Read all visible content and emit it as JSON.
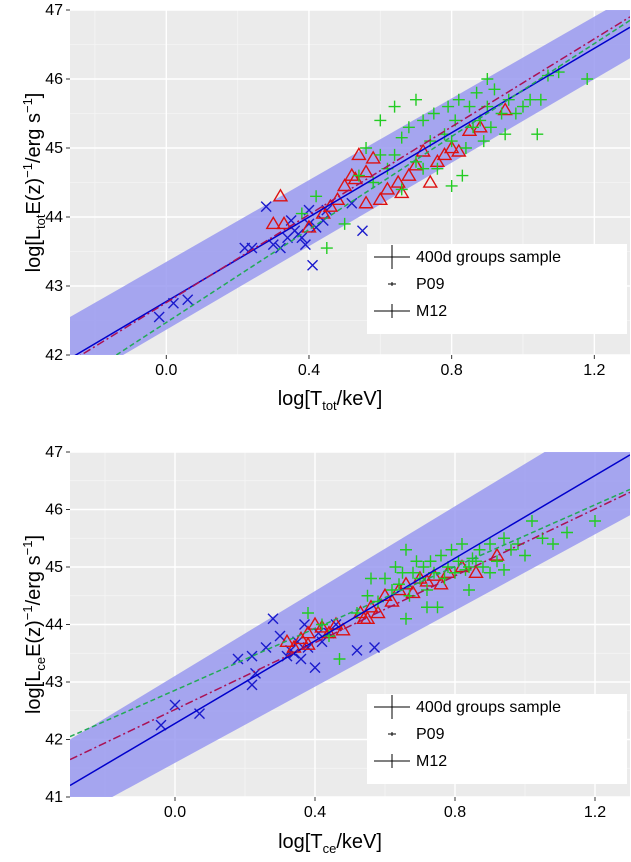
{
  "chart_data": [
    {
      "type": "scatter",
      "xlabel": {
        "main": "log[T",
        "sub": "tot",
        "tail": "/keV]"
      },
      "ylabel": {
        "p1": "log[L",
        "sub": "tot",
        "p2": "E(z)",
        "sup1": "−1",
        "p3": "/erg s",
        "sup2": "−1",
        "p4": "]"
      },
      "xlim": [
        -0.27,
        1.3
      ],
      "ylim": [
        42,
        47
      ],
      "xticks": [
        0.0,
        0.4,
        0.8,
        1.2
      ],
      "xtick_labels": [
        "0.0",
        "0.4",
        "0.8",
        "1.2"
      ],
      "yticks": [
        42,
        43,
        44,
        45,
        46,
        47
      ],
      "ytick_labels": [
        "42",
        "43",
        "44",
        "45",
        "46",
        "47"
      ],
      "grid": true,
      "legend_position": "bottom-right",
      "legend": [
        "400d groups sample",
        "P09",
        "M12"
      ],
      "band": {
        "x": [
          -0.27,
          1.3
        ],
        "lower": [
          41.55,
          46.3
        ],
        "upper": [
          42.55,
          47.2
        ],
        "color": "#9999f0"
      },
      "lines": [
        {
          "name": "400d groups sample",
          "style": "solid",
          "color": "#0000cc",
          "x": [
            -0.27,
            1.3
          ],
          "y": [
            41.95,
            46.75
          ]
        },
        {
          "name": "P09",
          "style": "dashdot",
          "color": "#aa1155",
          "x": [
            -0.27,
            1.3
          ],
          "y": [
            41.9,
            46.9
          ]
        },
        {
          "name": "M12",
          "style": "dashed",
          "color": "#22aa55",
          "x": [
            -0.14,
            1.3
          ],
          "y": [
            42.0,
            46.85
          ]
        }
      ],
      "series": [
        {
          "marker": "x",
          "color": "#1a1acc",
          "points": [
            [
              -0.02,
              42.55
            ],
            [
              0.02,
              42.75
            ],
            [
              0.06,
              42.8
            ],
            [
              0.22,
              43.55
            ],
            [
              0.24,
              43.55
            ],
            [
              0.28,
              44.15
            ],
            [
              0.3,
              43.6
            ],
            [
              0.32,
              43.55
            ],
            [
              0.34,
              43.7
            ],
            [
              0.35,
              43.95
            ],
            [
              0.37,
              43.75
            ],
            [
              0.38,
              43.7
            ],
            [
              0.39,
              43.6
            ],
            [
              0.4,
              44.1
            ],
            [
              0.41,
              43.3
            ],
            [
              0.42,
              43.85
            ],
            [
              0.44,
              43.95
            ],
            [
              0.45,
              44.1
            ],
            [
              0.52,
              44.2
            ],
            [
              0.55,
              43.8
            ],
            [
              0.4,
              43.9
            ],
            [
              0.36,
              43.8
            ]
          ]
        },
        {
          "marker": "triangle",
          "color": "#dd1111",
          "points": [
            [
              0.3,
              43.9
            ],
            [
              0.32,
              44.3
            ],
            [
              0.33,
              43.9
            ],
            [
              0.4,
              43.85
            ],
            [
              0.44,
              44.05
            ],
            [
              0.46,
              44.15
            ],
            [
              0.48,
              44.25
            ],
            [
              0.5,
              44.45
            ],
            [
              0.52,
              44.6
            ],
            [
              0.53,
              44.55
            ],
            [
              0.54,
              44.9
            ],
            [
              0.56,
              44.2
            ],
            [
              0.58,
              44.85
            ],
            [
              0.6,
              44.25
            ],
            [
              0.62,
              44.4
            ],
            [
              0.65,
              44.5
            ],
            [
              0.66,
              44.35
            ],
            [
              0.68,
              44.6
            ],
            [
              0.7,
              44.75
            ],
            [
              0.72,
              44.95
            ],
            [
              0.74,
              44.5
            ],
            [
              0.76,
              44.8
            ],
            [
              0.78,
              44.9
            ],
            [
              0.8,
              45.0
            ],
            [
              0.82,
              44.95
            ],
            [
              0.85,
              45.25
            ],
            [
              0.88,
              45.3
            ],
            [
              0.95,
              45.55
            ],
            [
              0.56,
              44.65
            ]
          ]
        },
        {
          "marker": "plus",
          "color": "#22cc22",
          "points": [
            [
              0.38,
              44.05
            ],
            [
              0.42,
              44.3
            ],
            [
              0.45,
              43.55
            ],
            [
              0.5,
              43.9
            ],
            [
              0.54,
              44.6
            ],
            [
              0.56,
              45.0
            ],
            [
              0.58,
              44.5
            ],
            [
              0.6,
              44.9
            ],
            [
              0.62,
              44.7
            ],
            [
              0.64,
              44.9
            ],
            [
              0.66,
              45.15
            ],
            [
              0.68,
              45.3
            ],
            [
              0.7,
              44.8
            ],
            [
              0.72,
              45.4
            ],
            [
              0.72,
              44.7
            ],
            [
              0.74,
              45.1
            ],
            [
              0.75,
              45.5
            ],
            [
              0.76,
              44.7
            ],
            [
              0.78,
              45.2
            ],
            [
              0.79,
              45.6
            ],
            [
              0.8,
              45.1
            ],
            [
              0.81,
              45.4
            ],
            [
              0.82,
              45.7
            ],
            [
              0.83,
              44.6
            ],
            [
              0.84,
              45.0
            ],
            [
              0.85,
              45.6
            ],
            [
              0.86,
              45.3
            ],
            [
              0.87,
              45.8
            ],
            [
              0.88,
              45.4
            ],
            [
              0.89,
              45.1
            ],
            [
              0.9,
              45.6
            ],
            [
              0.91,
              45.3
            ],
            [
              0.92,
              45.85
            ],
            [
              0.94,
              45.5
            ],
            [
              0.95,
              45.2
            ],
            [
              0.96,
              45.7
            ],
            [
              0.98,
              45.5
            ],
            [
              1.0,
              45.6
            ],
            [
              1.02,
              45.7
            ],
            [
              1.04,
              45.2
            ],
            [
              1.05,
              45.7
            ],
            [
              1.07,
              46.05
            ],
            [
              1.1,
              46.1
            ],
            [
              1.18,
              46.0
            ],
            [
              0.8,
              44.45
            ],
            [
              0.7,
              45.7
            ],
            [
              0.66,
              44.4
            ],
            [
              0.64,
              45.6
            ],
            [
              0.6,
              45.4
            ],
            [
              0.9,
              46.0
            ]
          ]
        }
      ]
    },
    {
      "type": "scatter",
      "xlabel": {
        "main": "log[T",
        "sub": "ce",
        "tail": "/keV]"
      },
      "ylabel": {
        "p1": "log[L",
        "sub": "ce",
        "p2": "E(z)",
        "sup1": "−1",
        "p3": "/erg s",
        "sup2": "−1",
        "p4": "]"
      },
      "xlim": [
        -0.3,
        1.3
      ],
      "ylim": [
        41,
        47
      ],
      "xticks": [
        0.0,
        0.4,
        0.8,
        1.2
      ],
      "xtick_labels": [
        "0.0",
        "0.4",
        "0.8",
        "1.2"
      ],
      "yticks": [
        41,
        42,
        43,
        44,
        45,
        46,
        47
      ],
      "ytick_labels": [
        "41",
        "42",
        "43",
        "44",
        "45",
        "46",
        "47"
      ],
      "grid": true,
      "legend_position": "bottom-right",
      "legend": [
        "400d groups sample",
        "P09",
        "M12"
      ],
      "band": {
        "x": [
          -0.3,
          1.3
        ],
        "lower": [
          40.6,
          45.9
        ],
        "upper": [
          42.0,
          47.9
        ],
        "color": "#9999f0"
      },
      "lines": [
        {
          "name": "400d groups sample",
          "style": "solid",
          "color": "#0000cc",
          "x": [
            -0.3,
            1.3
          ],
          "y": [
            41.2,
            46.95
          ]
        },
        {
          "name": "P09",
          "style": "dashdot",
          "color": "#aa1155",
          "x": [
            -0.3,
            1.3
          ],
          "y": [
            41.65,
            46.3
          ]
        },
        {
          "name": "M12",
          "style": "dashed",
          "color": "#22aa55",
          "x": [
            -0.3,
            1.3
          ],
          "y": [
            42.05,
            46.35
          ]
        }
      ],
      "series": [
        {
          "marker": "x",
          "color": "#1a1acc",
          "points": [
            [
              -0.04,
              42.25
            ],
            [
              0.0,
              42.6
            ],
            [
              0.07,
              42.45
            ],
            [
              0.18,
              43.4
            ],
            [
              0.22,
              42.95
            ],
            [
              0.22,
              43.45
            ],
            [
              0.23,
              43.15
            ],
            [
              0.26,
              43.6
            ],
            [
              0.28,
              44.1
            ],
            [
              0.3,
              43.8
            ],
            [
              0.32,
              43.45
            ],
            [
              0.33,
              43.55
            ],
            [
              0.34,
              43.5
            ],
            [
              0.35,
              43.7
            ],
            [
              0.37,
              44.0
            ],
            [
              0.38,
              43.6
            ],
            [
              0.4,
              43.25
            ],
            [
              0.41,
              43.85
            ],
            [
              0.42,
              43.7
            ],
            [
              0.44,
              43.85
            ],
            [
              0.52,
              43.55
            ],
            [
              0.57,
              43.6
            ],
            [
              0.46,
              44.0
            ],
            [
              0.36,
              43.4
            ]
          ]
        },
        {
          "marker": "triangle",
          "color": "#dd1111",
          "points": [
            [
              0.32,
              43.7
            ],
            [
              0.34,
              43.6
            ],
            [
              0.36,
              43.75
            ],
            [
              0.38,
              43.85
            ],
            [
              0.4,
              44.0
            ],
            [
              0.42,
              43.95
            ],
            [
              0.44,
              43.85
            ],
            [
              0.46,
              44.0
            ],
            [
              0.48,
              43.9
            ],
            [
              0.53,
              44.2
            ],
            [
              0.54,
              44.1
            ],
            [
              0.56,
              44.3
            ],
            [
              0.58,
              44.2
            ],
            [
              0.6,
              44.5
            ],
            [
              0.62,
              44.4
            ],
            [
              0.64,
              44.6
            ],
            [
              0.66,
              44.7
            ],
            [
              0.68,
              44.55
            ],
            [
              0.7,
              44.8
            ],
            [
              0.72,
              44.75
            ],
            [
              0.74,
              44.85
            ],
            [
              0.76,
              44.7
            ],
            [
              0.78,
              44.9
            ],
            [
              0.82,
              45.0
            ],
            [
              0.86,
              44.9
            ],
            [
              0.92,
              45.2
            ],
            [
              0.55,
              44.1
            ],
            [
              0.38,
              43.65
            ]
          ]
        },
        {
          "marker": "plus",
          "color": "#22cc22",
          "points": [
            [
              0.38,
              44.2
            ],
            [
              0.42,
              44.0
            ],
            [
              0.44,
              43.8
            ],
            [
              0.47,
              43.4
            ],
            [
              0.52,
              44.2
            ],
            [
              0.55,
              44.5
            ],
            [
              0.56,
              44.8
            ],
            [
              0.58,
              44.4
            ],
            [
              0.6,
              44.8
            ],
            [
              0.62,
              44.6
            ],
            [
              0.63,
              45.0
            ],
            [
              0.64,
              44.7
            ],
            [
              0.65,
              44.9
            ],
            [
              0.66,
              45.3
            ],
            [
              0.67,
              44.5
            ],
            [
              0.68,
              44.9
            ],
            [
              0.69,
              45.1
            ],
            [
              0.7,
              44.8
            ],
            [
              0.71,
              45.0
            ],
            [
              0.72,
              44.6
            ],
            [
              0.73,
              45.1
            ],
            [
              0.74,
              44.9
            ],
            [
              0.75,
              44.3
            ],
            [
              0.76,
              45.2
            ],
            [
              0.77,
              44.8
            ],
            [
              0.78,
              45.0
            ],
            [
              0.79,
              45.3
            ],
            [
              0.8,
              44.9
            ],
            [
              0.81,
              45.1
            ],
            [
              0.82,
              45.4
            ],
            [
              0.83,
              44.95
            ],
            [
              0.84,
              45.0
            ],
            [
              0.85,
              45.15
            ],
            [
              0.86,
              45.1
            ],
            [
              0.87,
              45.3
            ],
            [
              0.88,
              45.0
            ],
            [
              0.9,
              45.4
            ],
            [
              0.92,
              45.1
            ],
            [
              0.94,
              45.5
            ],
            [
              0.96,
              45.3
            ],
            [
              0.98,
              45.4
            ],
            [
              1.0,
              45.2
            ],
            [
              1.02,
              45.8
            ],
            [
              1.05,
              45.5
            ],
            [
              1.08,
              45.4
            ],
            [
              1.12,
              45.6
            ],
            [
              1.2,
              45.8
            ],
            [
              0.9,
              44.9
            ],
            [
              0.84,
              44.6
            ],
            [
              0.94,
              44.95
            ],
            [
              0.72,
              44.3
            ],
            [
              0.66,
              44.1
            ]
          ]
        }
      ]
    }
  ]
}
